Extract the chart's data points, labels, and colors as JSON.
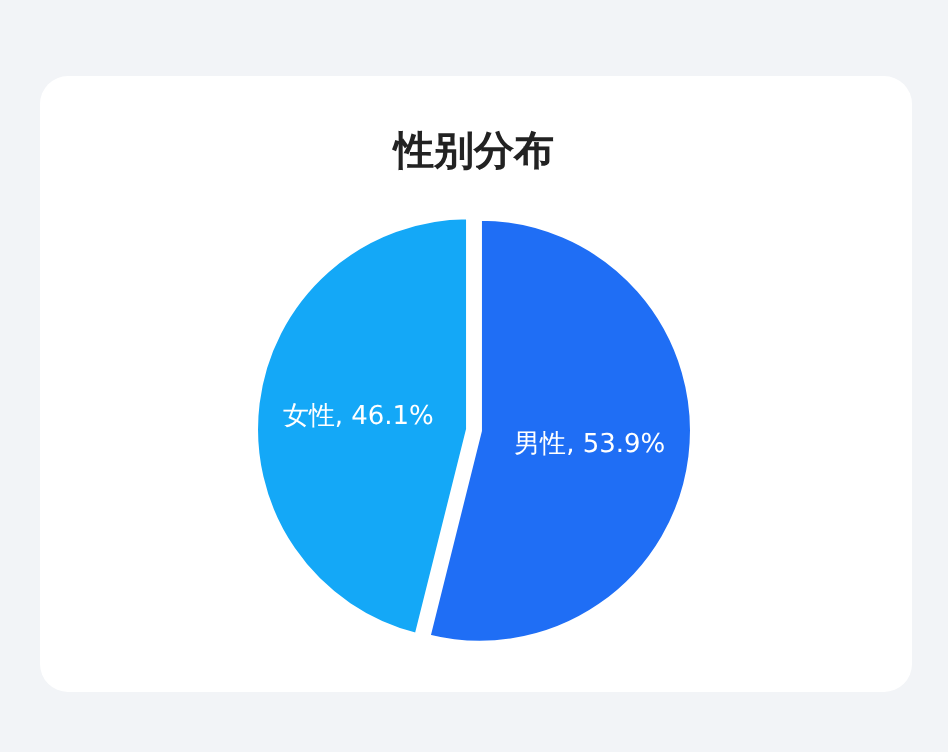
{
  "chart_data": {
    "type": "pie",
    "title": "性别分布",
    "categories": [
      "男性",
      "女性"
    ],
    "values": [
      53.9,
      46.1
    ],
    "value_labels": [
      "53.9%",
      "46.1%"
    ],
    "colors": [
      "#1f6ef5",
      "#14a8f7"
    ]
  }
}
